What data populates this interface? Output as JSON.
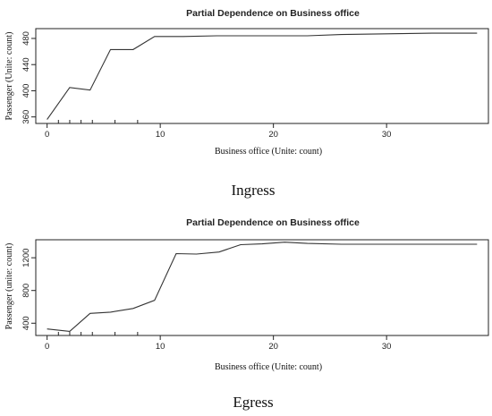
{
  "chart_data": [
    {
      "type": "line",
      "title": "Partial Dependence on Business office",
      "xlabel": "Business office (Unite: count)",
      "ylabel": "Passenger (Unite: count)",
      "caption": "Ingress",
      "xlim": [
        -1,
        39
      ],
      "ylim": [
        350,
        495
      ],
      "x_ticks": [
        0,
        10,
        20,
        30
      ],
      "y_ticks": [
        360,
        400,
        440,
        480
      ],
      "grid": false,
      "rug": [
        1,
        2,
        3,
        4,
        6,
        8
      ],
      "series": [
        {
          "x": [
            0,
            2,
            3.8,
            5.6,
            7.6,
            9.5,
            12,
            15,
            18,
            20,
            23,
            26,
            30,
            34,
            38
          ],
          "y": [
            356,
            405,
            401,
            463,
            463,
            483,
            483,
            484,
            484,
            484,
            484,
            486,
            487,
            488,
            488
          ]
        }
      ]
    },
    {
      "type": "line",
      "title": "Partial Dependence on Business office",
      "xlabel": "Business office (Unite: count)",
      "ylabel": "Passenger (unite: count)",
      "caption": "Egress",
      "xlim": [
        -1,
        39
      ],
      "ylim": [
        250,
        1420
      ],
      "x_ticks": [
        0,
        10,
        20,
        30
      ],
      "y_ticks": [
        400,
        800,
        1200
      ],
      "grid": false,
      "rug": [
        1,
        2,
        3,
        4,
        6,
        8
      ],
      "series": [
        {
          "x": [
            0,
            2,
            3.8,
            5.6,
            7.6,
            9.5,
            11.4,
            13.2,
            15.2,
            17.1,
            19,
            21,
            23,
            26,
            30,
            34,
            38
          ],
          "y": [
            330,
            300,
            520,
            535,
            580,
            680,
            1250,
            1245,
            1270,
            1360,
            1370,
            1390,
            1375,
            1365,
            1365,
            1365,
            1365
          ]
        }
      ]
    }
  ]
}
